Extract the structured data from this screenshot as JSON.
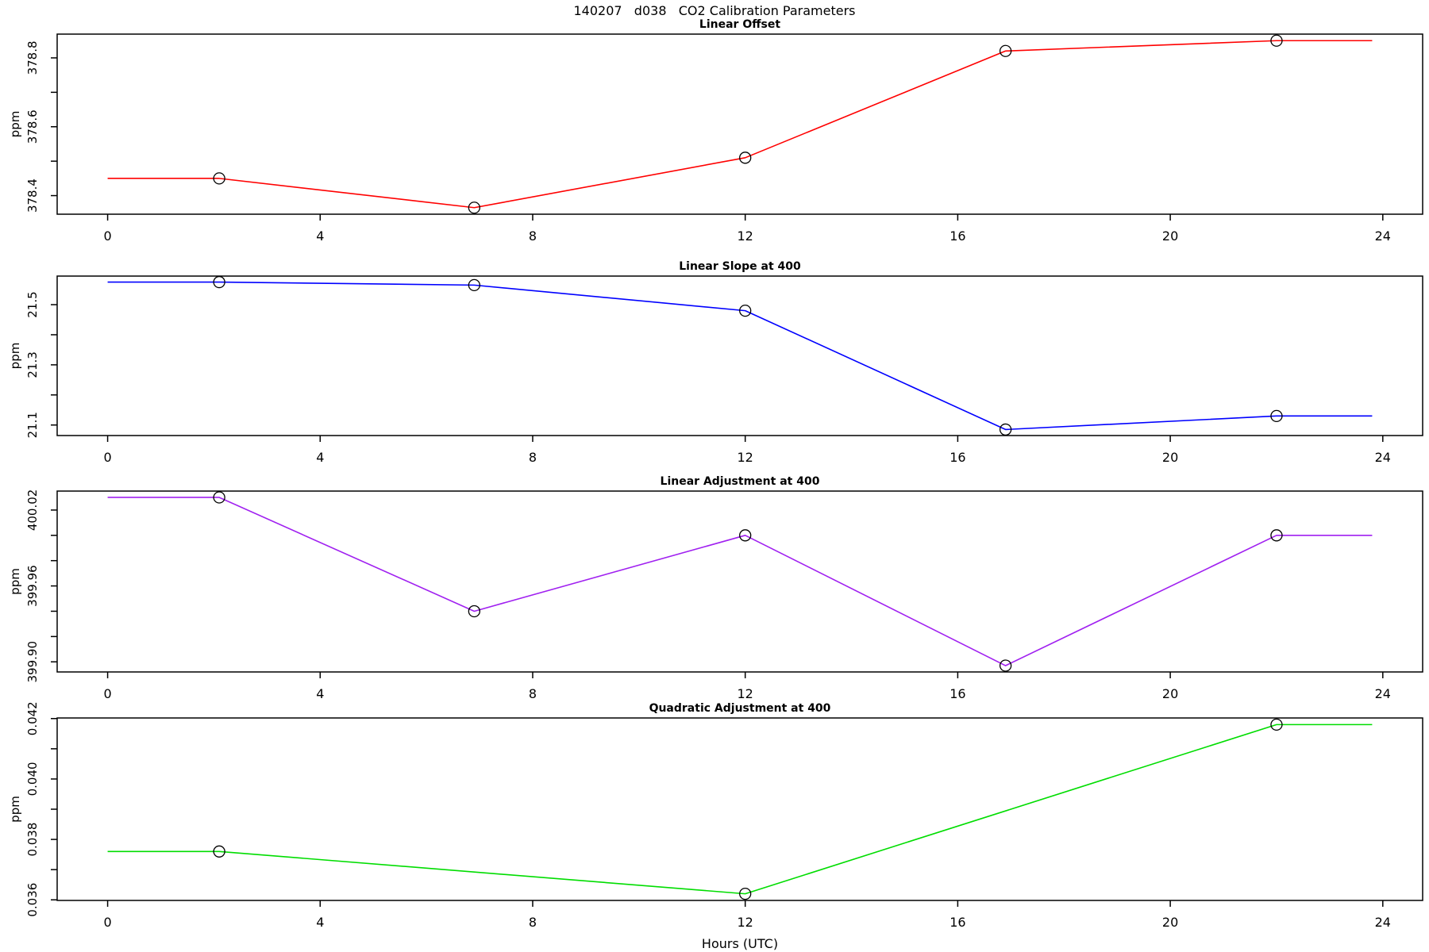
{
  "page": {
    "title": "140207   d038   CO2 Calibration Parameters"
  },
  "chart_data": {
    "type": "line",
    "title": "140207   d038   CO2 Calibration Parameters",
    "grid": false,
    "legend": "none",
    "x_axis": {
      "label": "Hours (UTC)",
      "ticks": [
        0,
        4,
        8,
        12,
        16,
        20,
        24
      ],
      "tick_labels": [
        "0",
        "4",
        "8",
        "12",
        "16",
        "20",
        "24"
      ],
      "xlim": [
        -0.95,
        24.75
      ]
    },
    "panels": [
      {
        "title": "Linear Offset",
        "ylabel": "ppm",
        "color": "#FF0000",
        "x": [
          0,
          2.1,
          6.9,
          12,
          16.9,
          22,
          23.8
        ],
        "y": [
          378.45,
          378.45,
          378.365,
          378.51,
          378.82,
          378.85,
          378.85
        ],
        "marker_x": [
          2.1,
          6.9,
          12,
          16.9,
          22
        ],
        "marker_y": [
          378.45,
          378.365,
          378.51,
          378.82,
          378.85
        ],
        "ylim": [
          378.346,
          378.869
        ],
        "yticks_major": [
          378.4,
          378.6,
          378.8
        ],
        "ytick_labels": [
          "378.4",
          "378.6",
          "378.8"
        ],
        "yticks_minor": [
          378.5,
          378.7
        ]
      },
      {
        "title": "Linear Slope at 400",
        "ylabel": "ppm",
        "color": "#0000FF",
        "x": [
          0,
          2.1,
          6.9,
          12,
          16.9,
          22,
          23.8
        ],
        "y": [
          21.575,
          21.575,
          21.565,
          21.48,
          21.085,
          21.13,
          21.13
        ],
        "marker_x": [
          2.1,
          6.9,
          12,
          16.9,
          22
        ],
        "marker_y": [
          21.575,
          21.565,
          21.48,
          21.085,
          21.13
        ],
        "ylim": [
          21.065,
          21.595
        ],
        "yticks_major": [
          21.1,
          21.3,
          21.5
        ],
        "ytick_labels": [
          "21.1",
          "21.3",
          "21.5"
        ],
        "yticks_minor": [
          21.2,
          21.4
        ]
      },
      {
        "title": "Linear Adjustment at 400",
        "ylabel": "ppm",
        "color": "#A020F0",
        "x": [
          0,
          2.1,
          6.9,
          12,
          16.9,
          22,
          23.8
        ],
        "y": [
          400.03,
          400.03,
          399.94,
          400.0,
          399.897,
          400.0,
          400.0
        ],
        "marker_x": [
          2.1,
          6.9,
          12,
          16.9,
          22
        ],
        "marker_y": [
          400.03,
          399.94,
          400.0,
          399.897,
          400.0
        ],
        "ylim": [
          399.892,
          400.035
        ],
        "yticks_major": [
          399.9,
          399.96,
          400.02
        ],
        "ytick_labels": [
          "399.90",
          "399.96",
          "400.02"
        ],
        "yticks_minor": [
          399.92,
          399.94,
          399.98,
          400.0
        ]
      },
      {
        "title": "Quadratic Adjustment at 400",
        "ylabel": "ppm",
        "color": "#00DD00",
        "x": [
          0,
          2.1,
          12,
          22,
          23.8
        ],
        "y": [
          0.0376,
          0.0376,
          0.0362,
          0.0418,
          0.0418
        ],
        "marker_x": [
          2.1,
          12,
          22
        ],
        "marker_y": [
          0.0376,
          0.0362,
          0.0418
        ],
        "ylim": [
          0.03598,
          0.04202
        ],
        "yticks_major": [
          0.036,
          0.038,
          0.04,
          0.042
        ],
        "ytick_labels": [
          "0.036",
          "0.038",
          "0.040",
          "0.042"
        ],
        "yticks_minor": [
          0.037,
          0.039,
          0.041
        ]
      }
    ]
  }
}
